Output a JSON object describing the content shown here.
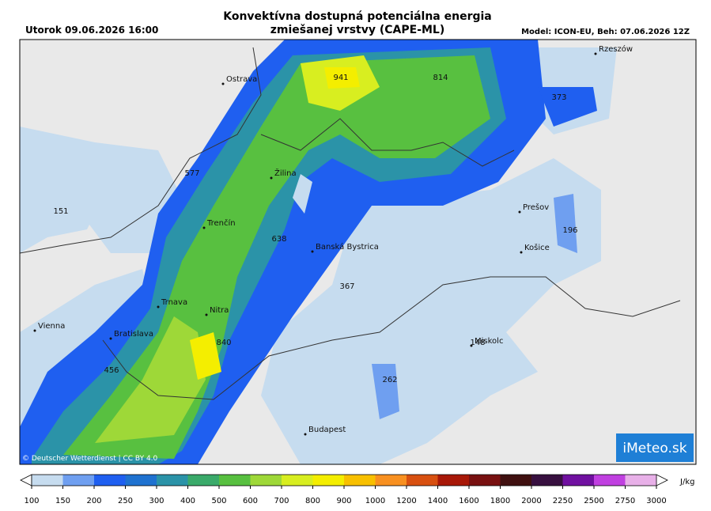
{
  "header": {
    "date": "Utorok 09.06.2026 16:00",
    "title": [
      "Konvektívna dostupná potenciálna energia",
      "zmiešanej vrstvy (CAPE-ML)"
    ],
    "model": "Model: ICON-EU, Beh: 07.06.2026 12Z"
  },
  "cities": [
    "Rzeszów",
    "Ostrava",
    "Žilina",
    "Prešov",
    "Trenčín",
    "Banská Bystrica",
    "Košice",
    "Trnava",
    "Nitra",
    "Vienna",
    "Bratislava",
    "Miskolc",
    "Budapest"
  ],
  "values": [
    941,
    814,
    373,
    577,
    151,
    638,
    196,
    367,
    840,
    148,
    456,
    262
  ],
  "copyright": "© Deutscher Wetterdienst | CC BY 4.0",
  "logo": "iMeteo.sk",
  "colorbar": {
    "ticks": [
      100,
      150,
      200,
      250,
      300,
      400,
      500,
      600,
      700,
      800,
      900,
      1000,
      1200,
      1400,
      1600,
      1800,
      2000,
      2250,
      2500,
      2750,
      3000
    ],
    "colors": [
      "#c6dcef",
      "#6f9ff0",
      "#1f5ff0",
      "#1f72d0",
      "#2b93a8",
      "#3aaa6a",
      "#58c040",
      "#9ed838",
      "#d8ee20",
      "#f4ee00",
      "#f8c000",
      "#f89020",
      "#d85010",
      "#a81808",
      "#781010",
      "#401010",
      "#381040",
      "#7010a0",
      "#c040e0",
      "#e8b0e8"
    ],
    "unit": "J/kg"
  }
}
